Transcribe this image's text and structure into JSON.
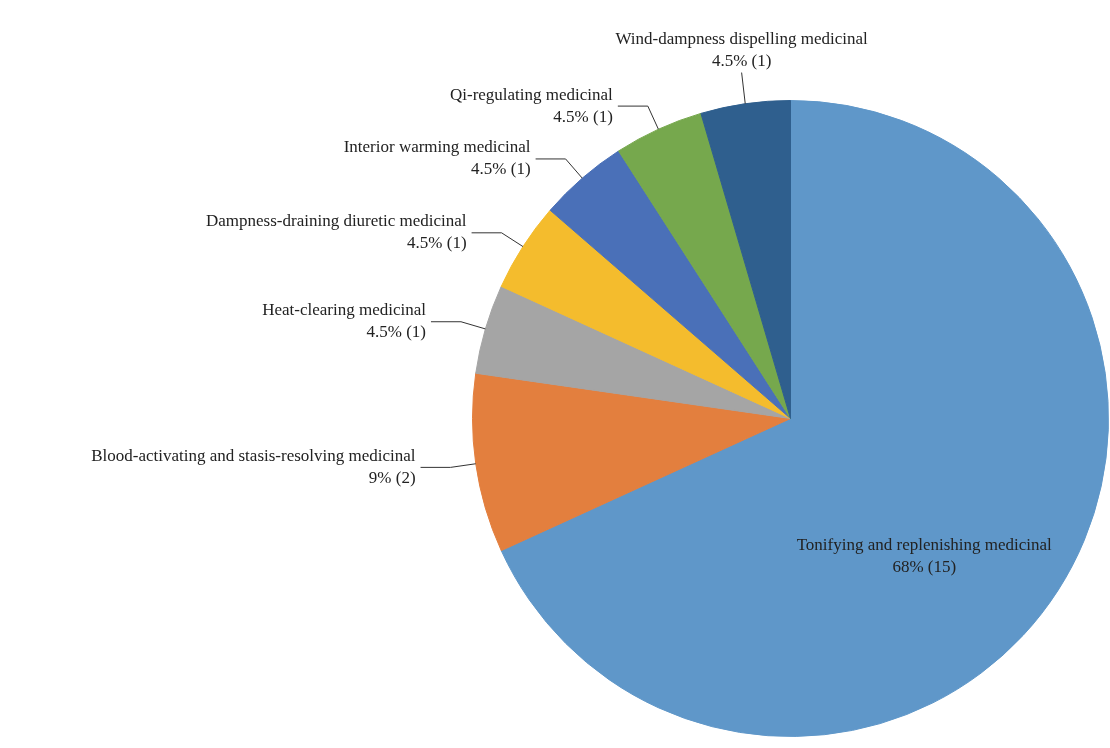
{
  "chart_data": {
    "type": "pie",
    "categories": [
      "Tonifying and replenishing medicinal",
      "Blood-activating and stasis-resolving medicinal",
      "Heat-clearing medicinal",
      "Dampness-draining diuretic medicinal",
      "Interior warming medicinal",
      "Qi-regulating medicinal",
      "Wind-dampness dispelling medicinal"
    ],
    "values": [
      15,
      2,
      1,
      1,
      1,
      1,
      1
    ],
    "value_labels": [
      "68% (15)",
      "9% (2)",
      "4.5% (1)",
      "4.5% (1)",
      "4.5% (1)",
      "4.5% (1)",
      "4.5% (1)"
    ],
    "colors": [
      "#5f97c9",
      "#e37f3e",
      "#a5a5a5",
      "#f4bc2d",
      "#4a70b8",
      "#76a84d",
      "#2f5f8e"
    ]
  }
}
